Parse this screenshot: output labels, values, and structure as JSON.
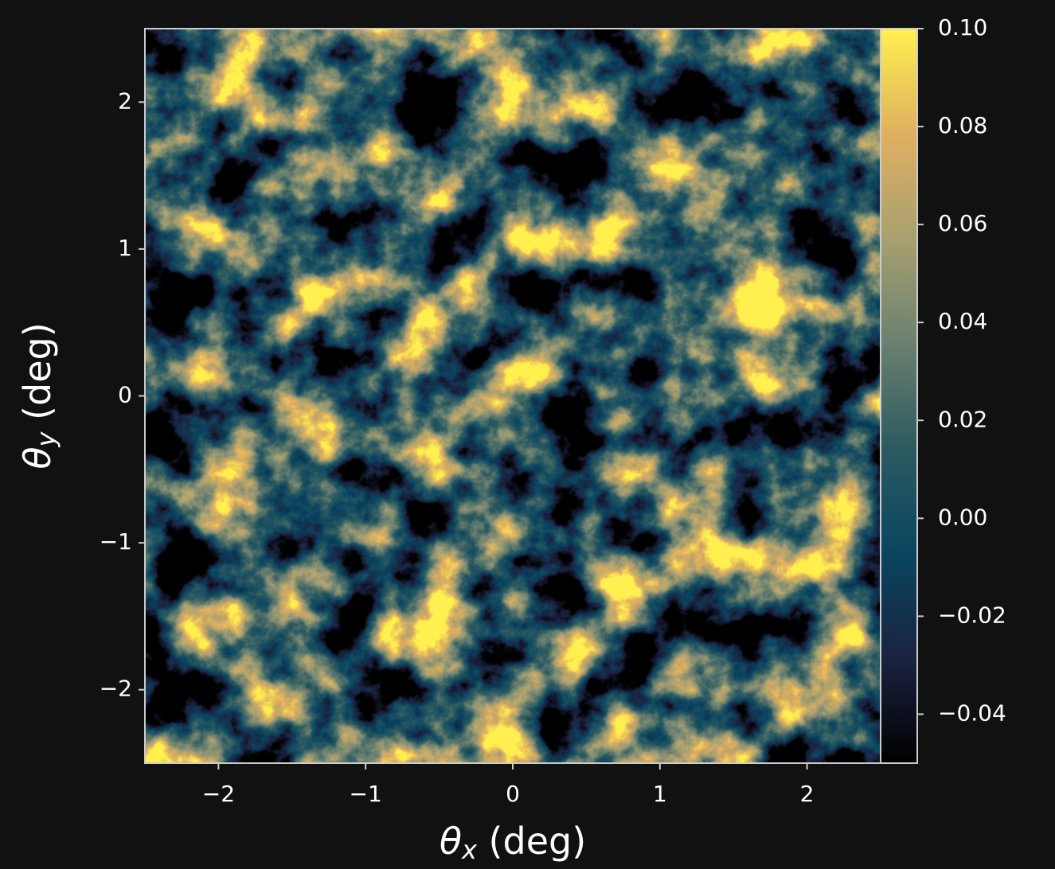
{
  "chart_data": {
    "type": "image",
    "xlabel": {
      "symbol": "θ",
      "sub": "x",
      "rest": " (deg)"
    },
    "ylabel": {
      "symbol": "θ",
      "sub": "y",
      "rest": " (deg)"
    },
    "xlim": [
      -2.5,
      2.5
    ],
    "ylim": [
      -2.5,
      2.5
    ],
    "xticks": [
      {
        "value": -2,
        "label": "−2"
      },
      {
        "value": -1,
        "label": "−1"
      },
      0,
      1,
      2
    ],
    "yticks": [
      {
        "value": -2,
        "label": "−2"
      },
      {
        "value": -1,
        "label": "−1"
      },
      0,
      1,
      2
    ],
    "clim": [
      -0.05,
      0.1
    ],
    "cticks": [
      {
        "value": -0.04,
        "label": "−0.04"
      },
      {
        "value": -0.02,
        "label": "−0.02"
      },
      {
        "value": 0,
        "label": "0.00"
      },
      0.02,
      0.04,
      0.06,
      0.08,
      {
        "value": 0.1,
        "label": "0.10"
      }
    ],
    "colormap": [
      "#000000",
      "#1a2340",
      "#0a4560",
      "#2c5a60",
      "#6a8070",
      "#a8a070",
      "#e0b060",
      "#fff050"
    ]
  }
}
